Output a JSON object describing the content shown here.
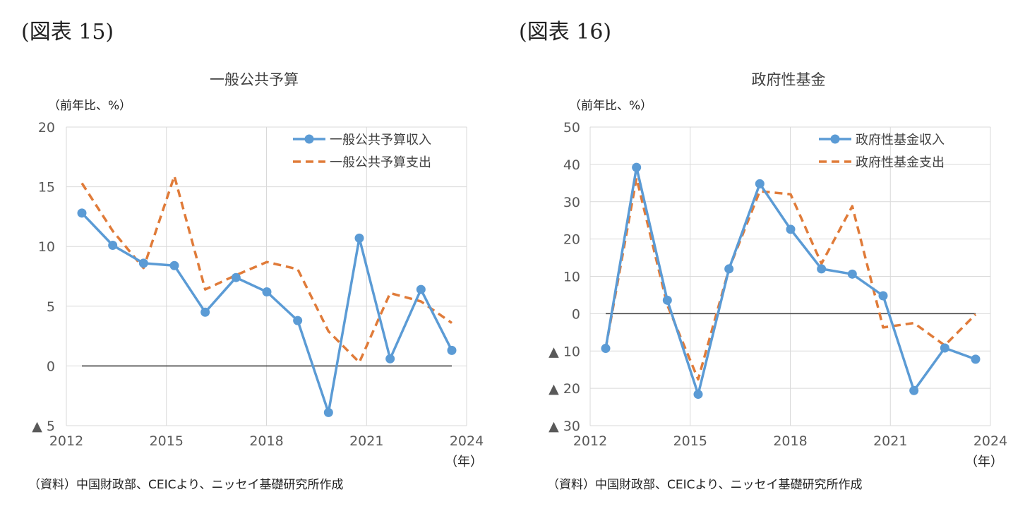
{
  "figures": [
    {
      "label": "(図表 15)",
      "source": "（資料）中国財政部、CEICより、ニッセイ基礎研究所作成"
    },
    {
      "label": "(図表 16)",
      "source": "（資料）中国財政部、CEICより、ニッセイ基礎研究所作成"
    }
  ],
  "chart_data": [
    {
      "type": "line",
      "title": "一般公共予算",
      "ylabel": "（前年比、%）",
      "xunit": "（年）",
      "x": [
        2012,
        2013,
        2014,
        2015,
        2016,
        2017,
        2018,
        2019,
        2020,
        2021,
        2022,
        2023,
        2024
      ],
      "xtick_labels": [
        "2012",
        "2015",
        "2018",
        "2021",
        "2024"
      ],
      "ylim": [
        -5,
        20
      ],
      "ytick_labels": [
        "20",
        "15",
        "10",
        "5",
        "0",
        "▲ 5"
      ],
      "ytick_values": [
        20,
        15,
        10,
        5,
        0,
        -5
      ],
      "grid": true,
      "legend_position": "top-right",
      "series": [
        {
          "name": "一般公共予算収入",
          "style": "solid-marker",
          "color": "#5B9BD5",
          "values": [
            12.8,
            10.1,
            8.6,
            8.4,
            4.5,
            7.4,
            6.2,
            3.8,
            -3.9,
            10.7,
            0.6,
            6.4,
            1.3
          ]
        },
        {
          "name": "一般公共予算支出",
          "style": "dashed",
          "color": "#E07B39",
          "values": [
            15.3,
            11.3,
            8.2,
            15.9,
            6.4,
            7.6,
            8.7,
            8.1,
            2.9,
            0.3,
            6.1,
            5.4,
            3.6
          ]
        }
      ]
    },
    {
      "type": "line",
      "title": "政府性基金",
      "ylabel": "（前年比、%）",
      "xunit": "（年）",
      "x": [
        2012,
        2013,
        2014,
        2015,
        2016,
        2017,
        2018,
        2019,
        2020,
        2021,
        2022,
        2023,
        2024
      ],
      "xtick_labels": [
        "2012",
        "2015",
        "2018",
        "2021",
        "2024"
      ],
      "ylim": [
        -30,
        50
      ],
      "ytick_labels": [
        "50",
        "40",
        "30",
        "20",
        "10",
        "0",
        "▲ 10",
        "▲ 20",
        "▲ 30"
      ],
      "ytick_values": [
        50,
        40,
        30,
        20,
        10,
        0,
        -10,
        -20,
        -30
      ],
      "grid": true,
      "legend_position": "top-right",
      "series": [
        {
          "name": "政府性基金収入",
          "style": "solid-marker",
          "color": "#5B9BD5",
          "values": [
            -9.3,
            39.2,
            3.6,
            -21.6,
            12.0,
            34.8,
            22.6,
            12.0,
            10.6,
            4.8,
            -20.6,
            -9.2,
            -12.2
          ]
        },
        {
          "name": "政府性基金支出",
          "style": "dashed",
          "color": "#E07B39",
          "values": [
            -9.3,
            36.3,
            2.3,
            -17.6,
            12.0,
            32.8,
            32.0,
            13.4,
            28.8,
            -3.7,
            -2.5,
            -8.5,
            -0.2
          ]
        }
      ]
    }
  ]
}
